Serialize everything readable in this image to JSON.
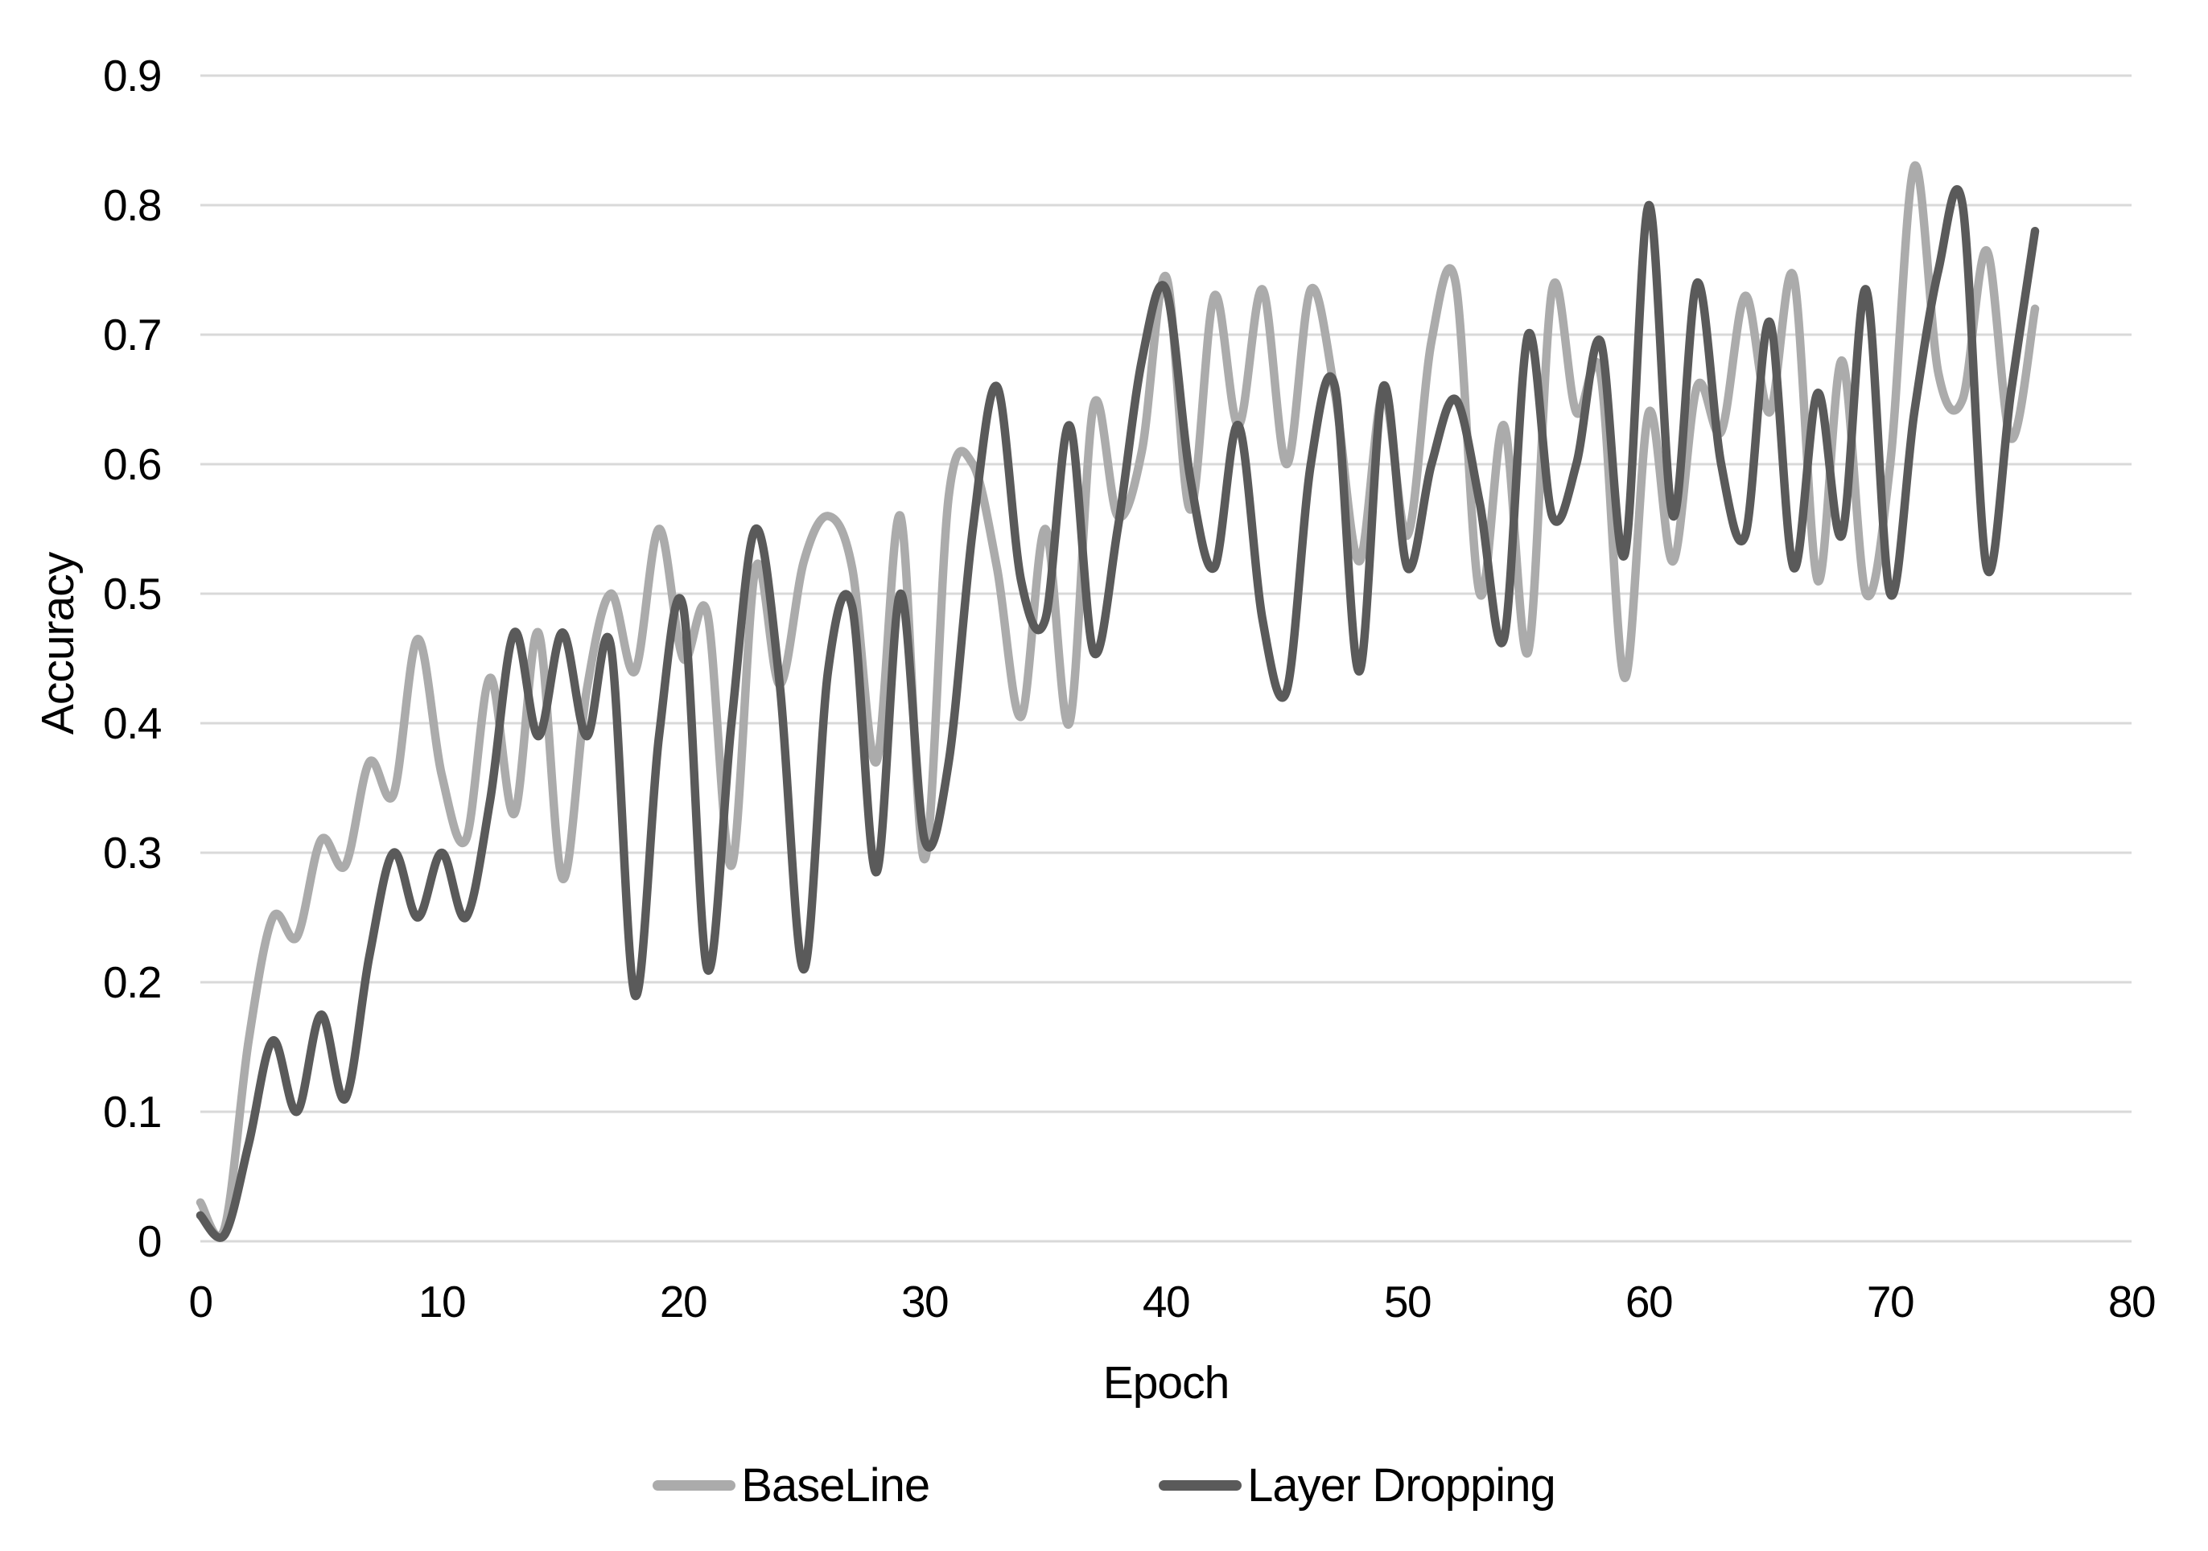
{
  "chart_data": {
    "type": "line",
    "title": "",
    "xlabel": "Epoch",
    "ylabel": "Accuracy",
    "xlim": [
      0,
      80
    ],
    "ylim": [
      0,
      0.9
    ],
    "x_ticks": [
      0,
      10,
      20,
      30,
      40,
      50,
      60,
      70,
      80
    ],
    "y_ticks": [
      0,
      0.1,
      0.2,
      0.3,
      0.4,
      0.5,
      0.6,
      0.7,
      0.8,
      0.9
    ],
    "grid": "horizontal",
    "gridline_color": "#d9d9d9",
    "text_color": "#000000",
    "legend_position": "bottom-center",
    "line_style": "smoothed",
    "x_start": 0,
    "x_step": 1,
    "series": [
      {
        "name": "BaseLine",
        "color": "#ababab",
        "values": [
          0.03,
          0.01,
          0.155,
          0.25,
          0.235,
          0.31,
          0.29,
          0.37,
          0.345,
          0.465,
          0.36,
          0.31,
          0.435,
          0.33,
          0.47,
          0.28,
          0.425,
          0.5,
          0.44,
          0.55,
          0.45,
          0.485,
          0.29,
          0.52,
          0.43,
          0.525,
          0.56,
          0.52,
          0.37,
          0.56,
          0.295,
          0.575,
          0.6,
          0.52,
          0.405,
          0.55,
          0.4,
          0.645,
          0.56,
          0.61,
          0.745,
          0.565,
          0.73,
          0.63,
          0.735,
          0.6,
          0.735,
          0.655,
          0.525,
          0.655,
          0.545,
          0.695,
          0.74,
          0.5,
          0.63,
          0.455,
          0.735,
          0.64,
          0.67,
          0.435,
          0.64,
          0.525,
          0.66,
          0.625,
          0.73,
          0.64,
          0.745,
          0.51,
          0.68,
          0.5,
          0.6,
          0.83,
          0.67,
          0.65,
          0.765,
          0.62,
          0.72
        ]
      },
      {
        "name": "Layer Dropping",
        "color": "#5a5a5a",
        "values": [
          0.02,
          0.005,
          0.075,
          0.155,
          0.1,
          0.175,
          0.11,
          0.22,
          0.3,
          0.25,
          0.3,
          0.25,
          0.34,
          0.47,
          0.39,
          0.47,
          0.39,
          0.46,
          0.19,
          0.39,
          0.49,
          0.21,
          0.4,
          0.55,
          0.43,
          0.21,
          0.44,
          0.49,
          0.285,
          0.5,
          0.31,
          0.37,
          0.55,
          0.66,
          0.51,
          0.48,
          0.63,
          0.455,
          0.55,
          0.68,
          0.735,
          0.59,
          0.52,
          0.63,
          0.48,
          0.425,
          0.6,
          0.66,
          0.44,
          0.66,
          0.52,
          0.6,
          0.65,
          0.57,
          0.465,
          0.7,
          0.56,
          0.6,
          0.695,
          0.53,
          0.8,
          0.56,
          0.74,
          0.6,
          0.545,
          0.71,
          0.52,
          0.655,
          0.545,
          0.735,
          0.5,
          0.64,
          0.75,
          0.8,
          0.52,
          0.655,
          0.78
        ]
      }
    ]
  }
}
